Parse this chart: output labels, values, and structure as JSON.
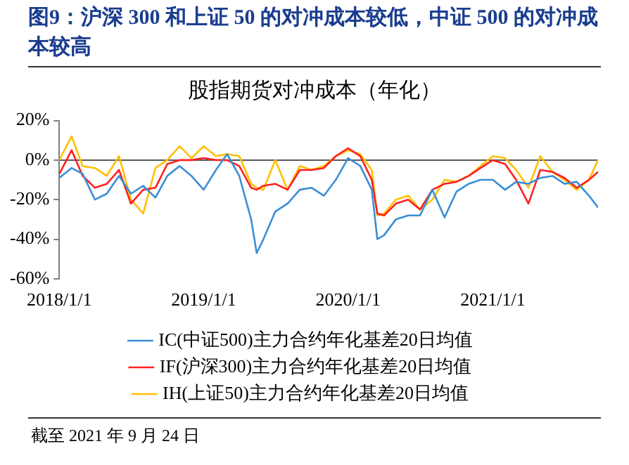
{
  "chart_data": {
    "type": "line",
    "title": "图9：沪深 300 和上证 50 的对冲成本较低，中证 500 的对冲成本较高",
    "subtitle": "股指期货对冲成本（年化）",
    "x": [
      "2018-01",
      "2018-02",
      "2018-03",
      "2018-04",
      "2018-05",
      "2018-06",
      "2018-07",
      "2018-08",
      "2018-09",
      "2018-10",
      "2018-11",
      "2018-12",
      "2019-01",
      "2019-02",
      "2019-03",
      "2019-04",
      "2019-05",
      "2019-05-15",
      "2019-06",
      "2019-07",
      "2019-08",
      "2019-09",
      "2019-10",
      "2019-11",
      "2019-12",
      "2020-01",
      "2020-02",
      "2020-03",
      "2020-03-15",
      "2020-04",
      "2020-05",
      "2020-06",
      "2020-07",
      "2020-08",
      "2020-09",
      "2020-10",
      "2020-11",
      "2020-12",
      "2021-01",
      "2021-02",
      "2021-03",
      "2021-04",
      "2021-05",
      "2021-06",
      "2021-07",
      "2021-08",
      "2021-09",
      "2021-09-24"
    ],
    "series": [
      {
        "name": "IC(中证500)主力合约年化基差20日均值",
        "color": "#3b8fd6",
        "values": [
          -9,
          -4,
          -7,
          -20,
          -17,
          -8,
          -17,
          -13,
          -19,
          -8,
          -3,
          -8,
          -15,
          -5,
          3,
          -8,
          -30,
          -47,
          -40,
          -26,
          -22,
          -15,
          -14,
          -18,
          -10,
          1,
          -3,
          -15,
          -40,
          -38,
          -30,
          -28,
          -28,
          -15,
          -29,
          -16,
          -12,
          -10,
          -10,
          -15,
          -11,
          -12,
          -9,
          -8,
          -12,
          -11,
          -18,
          -24
        ]
      },
      {
        "name": "IF(沪深300)主力合约年化基差20日均值",
        "color": "#ff2020",
        "values": [
          -7,
          5,
          -8,
          -14,
          -12,
          -5,
          -22,
          -15,
          -14,
          -2,
          0,
          0,
          1,
          0,
          0,
          -3,
          -14,
          -15,
          -13,
          -12,
          -15,
          -5,
          -5,
          -4,
          2,
          6,
          2,
          -10,
          -27,
          -28,
          -22,
          -20,
          -25,
          -15,
          -12,
          -11,
          -8,
          -4,
          0,
          -2,
          -10,
          -22,
          -5,
          -6,
          -9,
          -14,
          -10,
          -6
        ]
      },
      {
        "name": "IH(上证50)主力合约年化基差20日均值",
        "color": "#ffc000",
        "values": [
          0,
          12,
          -3,
          -4,
          -8,
          2,
          -20,
          -27,
          -4,
          0,
          7,
          1,
          7,
          2,
          3,
          2,
          -12,
          -14,
          -15,
          0,
          -15,
          -3,
          -5,
          -3,
          2,
          5,
          3,
          -5,
          -28,
          -27,
          -20,
          -18,
          -25,
          -20,
          -10,
          -11,
          -8,
          -3,
          2,
          1,
          -5,
          -14,
          2,
          -6,
          -10,
          -15,
          -10,
          0
        ]
      }
    ],
    "xlim": [
      "2018-01-01",
      "2021-09-24"
    ],
    "xticks": [
      {
        "value": "2018-01-01",
        "label": "2018/1/1"
      },
      {
        "value": "2019-01-01",
        "label": "2019/1/1"
      },
      {
        "value": "2020-01-01",
        "label": "2020/1/1"
      },
      {
        "value": "2021-01-01",
        "label": "2021/1/1"
      }
    ],
    "ylim": [
      -60,
      20
    ],
    "yticks": [
      {
        "value": -60,
        "label": "-60%"
      },
      {
        "value": -40,
        "label": "-40%"
      },
      {
        "value": -20,
        "label": "-20%"
      },
      {
        "value": 0,
        "label": "0%"
      },
      {
        "value": 20,
        "label": "20%"
      }
    ],
    "ref_lines": [
      {
        "axis": "y",
        "value": 0,
        "color": "#595959"
      }
    ],
    "legend": "bottom",
    "annotations": [
      "截至 2021 年 9 月 24 日"
    ]
  }
}
